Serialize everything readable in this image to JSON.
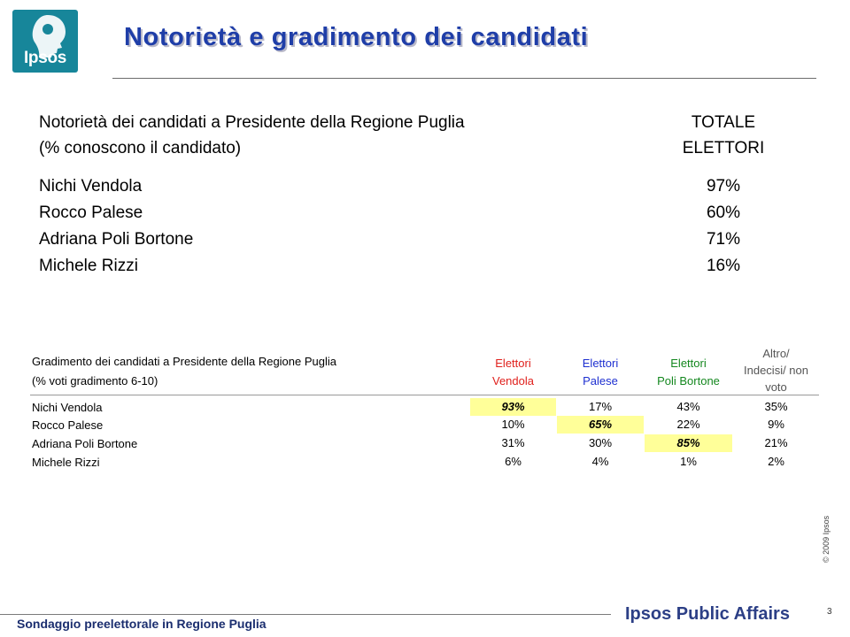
{
  "logo": {
    "text": "Ipsos"
  },
  "title": "Notorietà e gradimento dei candidati",
  "table1": {
    "header_line1": "Notorietà dei candidati a Presidente della Regione Puglia",
    "header_line2": "(% conoscono il candidato)",
    "total_line1": "TOTALE",
    "total_line2": "ELETTORI",
    "rows": [
      {
        "name": "Nichi Vendola",
        "value": "97%"
      },
      {
        "name": "Rocco Palese",
        "value": "60%"
      },
      {
        "name": "Adriana Poli Bortone",
        "value": "71%"
      },
      {
        "name": "Michele Rizzi",
        "value": "16%"
      }
    ]
  },
  "table2": {
    "header_line1": "Gradimento dei candidati a Presidente della Regione Puglia",
    "header_line2": "(% voti gradimento 6-10)",
    "columns": [
      {
        "line1": "Elettori",
        "line2": "Vendola",
        "color": "#e0201c"
      },
      {
        "line1": "Elettori",
        "line2": "Palese",
        "color": "#1d2fd0"
      },
      {
        "line1": "Elettori",
        "line2": "Poli Bortone",
        "color": "#13871e"
      },
      {
        "line1": "Altro/",
        "line2": "Indecisi/ non",
        "line3": "voto",
        "color": "#555555"
      }
    ],
    "rows": [
      {
        "name": "Nichi Vendola",
        "values": [
          "93%",
          "17%",
          "43%",
          "35%"
        ]
      },
      {
        "name": "Rocco Palese",
        "values": [
          "10%",
          "65%",
          "22%",
          "9%"
        ]
      },
      {
        "name": "Adriana Poli Bortone",
        "values": [
          "31%",
          "30%",
          "85%",
          "21%"
        ]
      },
      {
        "name": "Michele Rizzi",
        "values": [
          "6%",
          "4%",
          "1%",
          "2%"
        ]
      }
    ],
    "highlight_color": "#ffff99"
  },
  "copyright": "© 2009 Ipsos",
  "page_number": "3",
  "footer": "Sondaggio preelettorale in Regione Puglia",
  "brand": "Ipsos Public Affairs"
}
